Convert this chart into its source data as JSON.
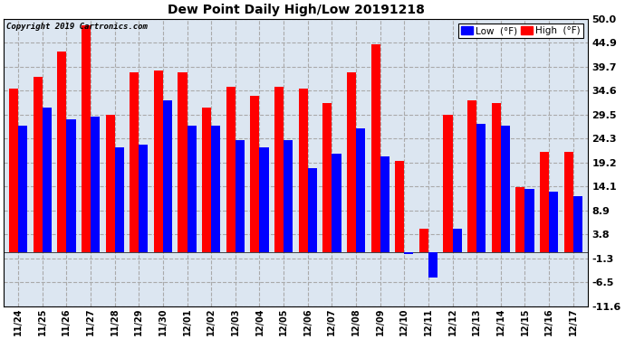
{
  "title": "Dew Point Daily High/Low 20191218",
  "copyright": "Copyright 2019 Cartronics.com",
  "legend_low_label": "Low  (°F)",
  "legend_high_label": "High  (°F)",
  "low_color": "#0000ff",
  "high_color": "#ff0000",
  "background_color": "#ffffff",
  "plot_bg_color": "#dce6f1",
  "grid_color": "#aaaaaa",
  "ylim": [
    -11.6,
    50.0
  ],
  "yticks": [
    -11.6,
    -6.5,
    -1.3,
    3.8,
    8.9,
    14.1,
    19.2,
    24.3,
    29.5,
    34.6,
    39.7,
    44.9,
    50.0
  ],
  "categories": [
    "11/24",
    "11/25",
    "11/26",
    "11/27",
    "11/28",
    "11/29",
    "11/30",
    "12/01",
    "12/02",
    "12/03",
    "12/04",
    "12/05",
    "12/06",
    "12/07",
    "12/08",
    "12/09",
    "12/10",
    "12/11",
    "12/12",
    "12/13",
    "12/14",
    "12/15",
    "12/16",
    "12/17"
  ],
  "high_values": [
    35.0,
    37.5,
    43.0,
    48.5,
    29.5,
    38.5,
    39.0,
    38.5,
    31.0,
    35.5,
    33.5,
    35.5,
    35.0,
    32.0,
    38.5,
    44.5,
    19.5,
    5.0,
    29.5,
    32.5,
    32.0,
    14.0,
    21.5,
    21.5
  ],
  "low_values": [
    27.0,
    31.0,
    28.5,
    29.0,
    22.5,
    23.0,
    32.5,
    27.0,
    27.0,
    24.0,
    22.5,
    24.0,
    18.0,
    21.0,
    26.5,
    20.5,
    -0.5,
    -5.5,
    5.0,
    27.5,
    27.0,
    13.5,
    13.0,
    12.0
  ]
}
